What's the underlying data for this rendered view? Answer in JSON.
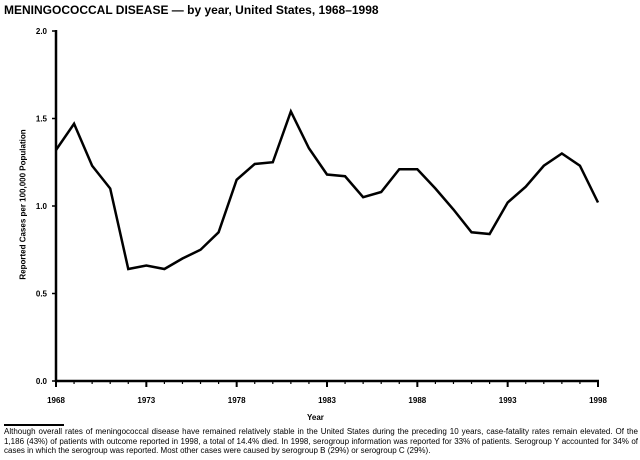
{
  "chart_data": {
    "type": "line",
    "title": "MENINGOCOCCAL DISEASE — by year, United States, 1968–1998",
    "xlabel": "Year",
    "ylabel": "Reported Cases per 100,000 Population",
    "xlim": [
      1968,
      1998
    ],
    "ylim": [
      0,
      2.0
    ],
    "x_ticks": [
      "1968",
      "1973",
      "1978",
      "1983",
      "1988",
      "1993",
      "1998"
    ],
    "y_ticks": [
      "0.0",
      "0.5",
      "1.0",
      "1.5",
      "2.0"
    ],
    "grid": false,
    "series": [
      {
        "name": "Meningococcal disease",
        "x": [
          1968,
          1969,
          1970,
          1971,
          1972,
          1973,
          1974,
          1975,
          1976,
          1977,
          1978,
          1979,
          1980,
          1981,
          1982,
          1983,
          1984,
          1985,
          1986,
          1987,
          1988,
          1989,
          1990,
          1991,
          1992,
          1993,
          1994,
          1995,
          1996,
          1997,
          1998
        ],
        "values": [
          1.32,
          1.47,
          1.23,
          1.1,
          0.64,
          0.66,
          0.64,
          0.7,
          0.75,
          0.85,
          1.15,
          1.24,
          1.25,
          1.54,
          1.33,
          1.18,
          1.17,
          1.05,
          1.08,
          1.21,
          1.21,
          1.1,
          0.98,
          0.85,
          0.84,
          1.02,
          1.11,
          1.23,
          1.3,
          1.23,
          1.02
        ]
      }
    ]
  },
  "footnote": "Although overall rates of meningococcal disease have remained relatively stable in the United States during the preceding 10 years, case-fatality rates remain elevated. Of the 1,186 (43%) of patients with outcome reported in 1998, a total of 14.4% died. In 1998, serogroup information was reported for 33% of patients. Serogroup Y accounted for 34% of cases in which the serogroup was reported. Most other cases were caused by serogroup B (29%) or serogroup C (29%)."
}
